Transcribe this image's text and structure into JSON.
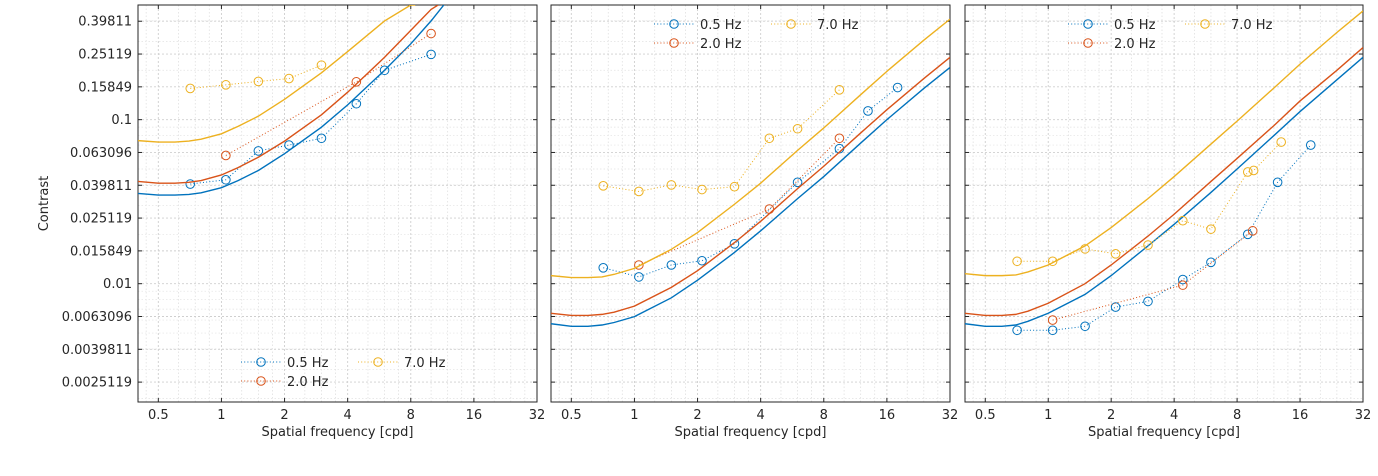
{
  "chart_data": [
    {
      "type": "line",
      "xlabel": "Spatial frequency [cpd]",
      "ylabel": "Contrast",
      "xscale": "log2",
      "yscale": "log10",
      "xlim": [
        0.4,
        32
      ],
      "ylim": [
        0.0019,
        0.5
      ],
      "xticks": [
        0.5,
        1,
        2,
        4,
        8,
        16,
        32
      ],
      "xtick_labels": [
        "0.5",
        "1",
        "2",
        "4",
        "8",
        "16",
        "32"
      ],
      "yticks": [
        0.0025119,
        0.0039811,
        0.0063096,
        0.01,
        0.015849,
        0.025119,
        0.039811,
        0.063096,
        0.1,
        0.15849,
        0.25119,
        0.39811
      ],
      "ytick_labels": [
        "0.0025119",
        "0.0039811",
        "0.0063096",
        "0.01",
        "0.015849",
        "0.025119",
        "0.039811",
        "0.063096",
        "0.1",
        "0.15849",
        "0.25119",
        "0.39811"
      ],
      "show_ytick_labels": true,
      "grid": true,
      "legend_position": "bottom-center",
      "legend": [
        {
          "label": "0.5 Hz",
          "color": "#0072BD"
        },
        {
          "label": "2.0 Hz",
          "color": "#D95319"
        },
        {
          "label": "7.0 Hz",
          "color": "#EDB120"
        }
      ],
      "series": [
        {
          "name": "0.5 Hz",
          "color": "#0072BD",
          "points": {
            "x": [
              0.71,
              1.05,
              1.5,
              2.1,
              3.0,
              4.4,
              6.0,
              10.0
            ],
            "y": [
              0.0405,
              0.043,
              0.0645,
              0.07,
              0.077,
              0.125,
              0.2,
              0.25
            ]
          },
          "fit": {
            "x": [
              0.4,
              0.5,
              0.6,
              0.7,
              0.8,
              1.0,
              1.2,
              1.5,
              2,
              3,
              4,
              6,
              8,
              10,
              11.5
            ],
            "y": [
              0.0355,
              0.0347,
              0.0347,
              0.035,
              0.0358,
              0.0385,
              0.0425,
              0.049,
              0.062,
              0.09,
              0.123,
              0.2,
              0.29,
              0.4,
              0.5
            ]
          }
        },
        {
          "name": "2.0 Hz",
          "color": "#D95319",
          "points": {
            "x": [
              1.05,
              4.4,
              10.0
            ],
            "y": [
              0.0605,
              0.17,
              0.335
            ]
          },
          "fit": {
            "x": [
              0.4,
              0.5,
              0.6,
              0.7,
              0.8,
              1.0,
              1.2,
              1.5,
              2,
              3,
              4,
              6,
              8,
              10,
              10.8
            ],
            "y": [
              0.042,
              0.041,
              0.041,
              0.0415,
              0.0425,
              0.046,
              0.051,
              0.059,
              0.074,
              0.107,
              0.147,
              0.24,
              0.35,
              0.47,
              0.5
            ]
          }
        },
        {
          "name": "7.0 Hz",
          "color": "#EDB120",
          "points": {
            "x": [
              0.71,
              1.05,
              1.5,
              2.1,
              3.0
            ],
            "y": [
              0.155,
              0.163,
              0.171,
              0.178,
              0.215
            ]
          },
          "fit": {
            "x": [
              0.4,
              0.5,
              0.6,
              0.7,
              0.8,
              1.0,
              1.2,
              1.5,
              2,
              3,
              4,
              6,
              8,
              8.4
            ],
            "y": [
              0.0745,
              0.073,
              0.073,
              0.074,
              0.076,
              0.082,
              0.091,
              0.105,
              0.133,
              0.193,
              0.26,
              0.4,
              0.5,
              0.5
            ]
          }
        }
      ]
    },
    {
      "type": "line",
      "xlabel": "Spatial frequency [cpd]",
      "ylabel": "",
      "xscale": "log2",
      "yscale": "log10",
      "xlim": [
        0.4,
        32
      ],
      "ylim": [
        0.0019,
        0.5
      ],
      "xticks": [
        0.5,
        1,
        2,
        4,
        8,
        16,
        32
      ],
      "xtick_labels": [
        "0.5",
        "1",
        "2",
        "4",
        "8",
        "16",
        "32"
      ],
      "yticks": [
        0.0025119,
        0.0039811,
        0.0063096,
        0.01,
        0.015849,
        0.025119,
        0.039811,
        0.063096,
        0.1,
        0.15849,
        0.25119,
        0.39811
      ],
      "show_ytick_labels": false,
      "grid": true,
      "legend_position": "top-center",
      "legend": [
        {
          "label": "0.5 Hz",
          "color": "#0072BD"
        },
        {
          "label": "2.0 Hz",
          "color": "#D95319"
        },
        {
          "label": "7.0 Hz",
          "color": "#EDB120"
        }
      ],
      "series": [
        {
          "name": "0.5 Hz",
          "color": "#0072BD",
          "points": {
            "x": [
              0.71,
              1.05,
              1.5,
              2.1,
              3.0,
              6.0,
              9.5,
              13.0,
              18.0
            ],
            "y": [
              0.0125,
              0.011,
              0.013,
              0.0138,
              0.0175,
              0.0415,
              0.0665,
              0.113,
              0.157
            ]
          },
          "fit": {
            "x": [
              0.4,
              0.5,
              0.6,
              0.7,
              0.8,
              1,
              1.5,
              2,
              3,
              4,
              6,
              8,
              12,
              16,
              24,
              32
            ],
            "y": [
              0.0057,
              0.0055,
              0.0055,
              0.0056,
              0.0058,
              0.0063,
              0.0082,
              0.0105,
              0.0155,
              0.021,
              0.033,
              0.045,
              0.072,
              0.1,
              0.155,
              0.208
            ]
          }
        },
        {
          "name": "2.0 Hz",
          "color": "#D95319",
          "points": {
            "x": [
              1.05,
              4.4,
              9.5
            ],
            "y": [
              0.013,
              0.0285,
              0.077
            ]
          },
          "fit": {
            "x": [
              0.4,
              0.5,
              0.6,
              0.7,
              0.8,
              1,
              1.5,
              2,
              3,
              4,
              6,
              8,
              12,
              16,
              24,
              32
            ],
            "y": [
              0.0066,
              0.0064,
              0.0064,
              0.0065,
              0.0067,
              0.0073,
              0.0095,
              0.012,
              0.0178,
              0.024,
              0.038,
              0.052,
              0.083,
              0.115,
              0.178,
              0.24
            ]
          }
        },
        {
          "name": "7.0 Hz",
          "color": "#EDB120",
          "points": {
            "x": [
              0.71,
              1.05,
              1.5,
              2.1,
              3.0,
              4.4,
              6.0,
              9.5
            ],
            "y": [
              0.0395,
              0.0365,
              0.04,
              0.0375,
              0.039,
              0.077,
              0.088,
              0.152
            ]
          },
          "fit": {
            "x": [
              0.4,
              0.5,
              0.6,
              0.7,
              0.8,
              1,
              1.5,
              2,
              3,
              4,
              6,
              8,
              12,
              16,
              24,
              32
            ],
            "y": [
              0.0112,
              0.0109,
              0.0109,
              0.011,
              0.0114,
              0.0124,
              0.0162,
              0.0205,
              0.0305,
              0.041,
              0.065,
              0.089,
              0.142,
              0.197,
              0.305,
              0.41
            ]
          }
        }
      ]
    },
    {
      "type": "line",
      "xlabel": "Spatial frequency [cpd]",
      "ylabel": "",
      "xscale": "log2",
      "yscale": "log10",
      "xlim": [
        0.4,
        32
      ],
      "ylim": [
        0.0019,
        0.5
      ],
      "xticks": [
        0.5,
        1,
        2,
        4,
        8,
        16,
        32
      ],
      "xtick_labels": [
        "0.5",
        "1",
        "2",
        "4",
        "8",
        "16",
        "32"
      ],
      "yticks": [
        0.0025119,
        0.0039811,
        0.0063096,
        0.01,
        0.015849,
        0.025119,
        0.039811,
        0.063096,
        0.1,
        0.15849,
        0.25119,
        0.39811
      ],
      "show_ytick_labels": false,
      "grid": true,
      "legend_position": "top-center",
      "legend": [
        {
          "label": "0.5 Hz",
          "color": "#0072BD"
        },
        {
          "label": "2.0 Hz",
          "color": "#D95319"
        },
        {
          "label": "7.0 Hz",
          "color": "#EDB120"
        }
      ],
      "series": [
        {
          "name": "0.5 Hz",
          "color": "#0072BD",
          "points": {
            "x": [
              0.71,
              1.05,
              1.5,
              2.1,
              3.0,
              4.4,
              6.0,
              9.0,
              12.5,
              18.0
            ],
            "y": [
              0.0052,
              0.0052,
              0.0055,
              0.0072,
              0.0078,
              0.0106,
              0.0135,
              0.02,
              0.0415,
              0.07
            ]
          },
          "fit": {
            "x": [
              0.4,
              0.5,
              0.6,
              0.7,
              0.8,
              1,
              1.5,
              2,
              3,
              4,
              6,
              8,
              12,
              16,
              24,
              32
            ],
            "y": [
              0.0057,
              0.0055,
              0.0055,
              0.0056,
              0.0059,
              0.0066,
              0.0086,
              0.0112,
              0.017,
              0.023,
              0.036,
              0.05,
              0.08,
              0.112,
              0.175,
              0.24
            ]
          }
        },
        {
          "name": "2.0 Hz",
          "color": "#D95319",
          "points": {
            "x": [
              1.05,
              4.4,
              9.5
            ],
            "y": [
              0.006,
              0.0098,
              0.021
            ]
          },
          "fit": {
            "x": [
              0.4,
              0.5,
              0.6,
              0.7,
              0.8,
              1,
              1.5,
              2,
              3,
              4,
              6,
              8,
              12,
              16,
              24,
              32
            ],
            "y": [
              0.0066,
              0.0064,
              0.0064,
              0.0065,
              0.0068,
              0.0076,
              0.01,
              0.013,
              0.0195,
              0.0265,
              0.042,
              0.058,
              0.092,
              0.13,
              0.2,
              0.275
            ]
          }
        },
        {
          "name": "7.0 Hz",
          "color": "#EDB120",
          "points": {
            "x": [
              0.71,
              1.05,
              1.5,
              2.1,
              3.0,
              4.4,
              6.0,
              9.0,
              9.6,
              13.0
            ],
            "y": [
              0.0137,
              0.0137,
              0.0163,
              0.0152,
              0.0172,
              0.0242,
              0.0215,
              0.048,
              0.049,
              0.073
            ]
          },
          "fit": {
            "x": [
              0.4,
              0.5,
              0.6,
              0.7,
              0.8,
              1,
              1.5,
              2,
              3,
              4,
              6,
              8,
              12,
              16,
              24,
              32
            ],
            "y": [
              0.0115,
              0.0112,
              0.0112,
              0.0113,
              0.0118,
              0.013,
              0.017,
              0.022,
              0.033,
              0.045,
              0.071,
              0.098,
              0.156,
              0.218,
              0.34,
              0.46
            ]
          }
        }
      ]
    }
  ]
}
